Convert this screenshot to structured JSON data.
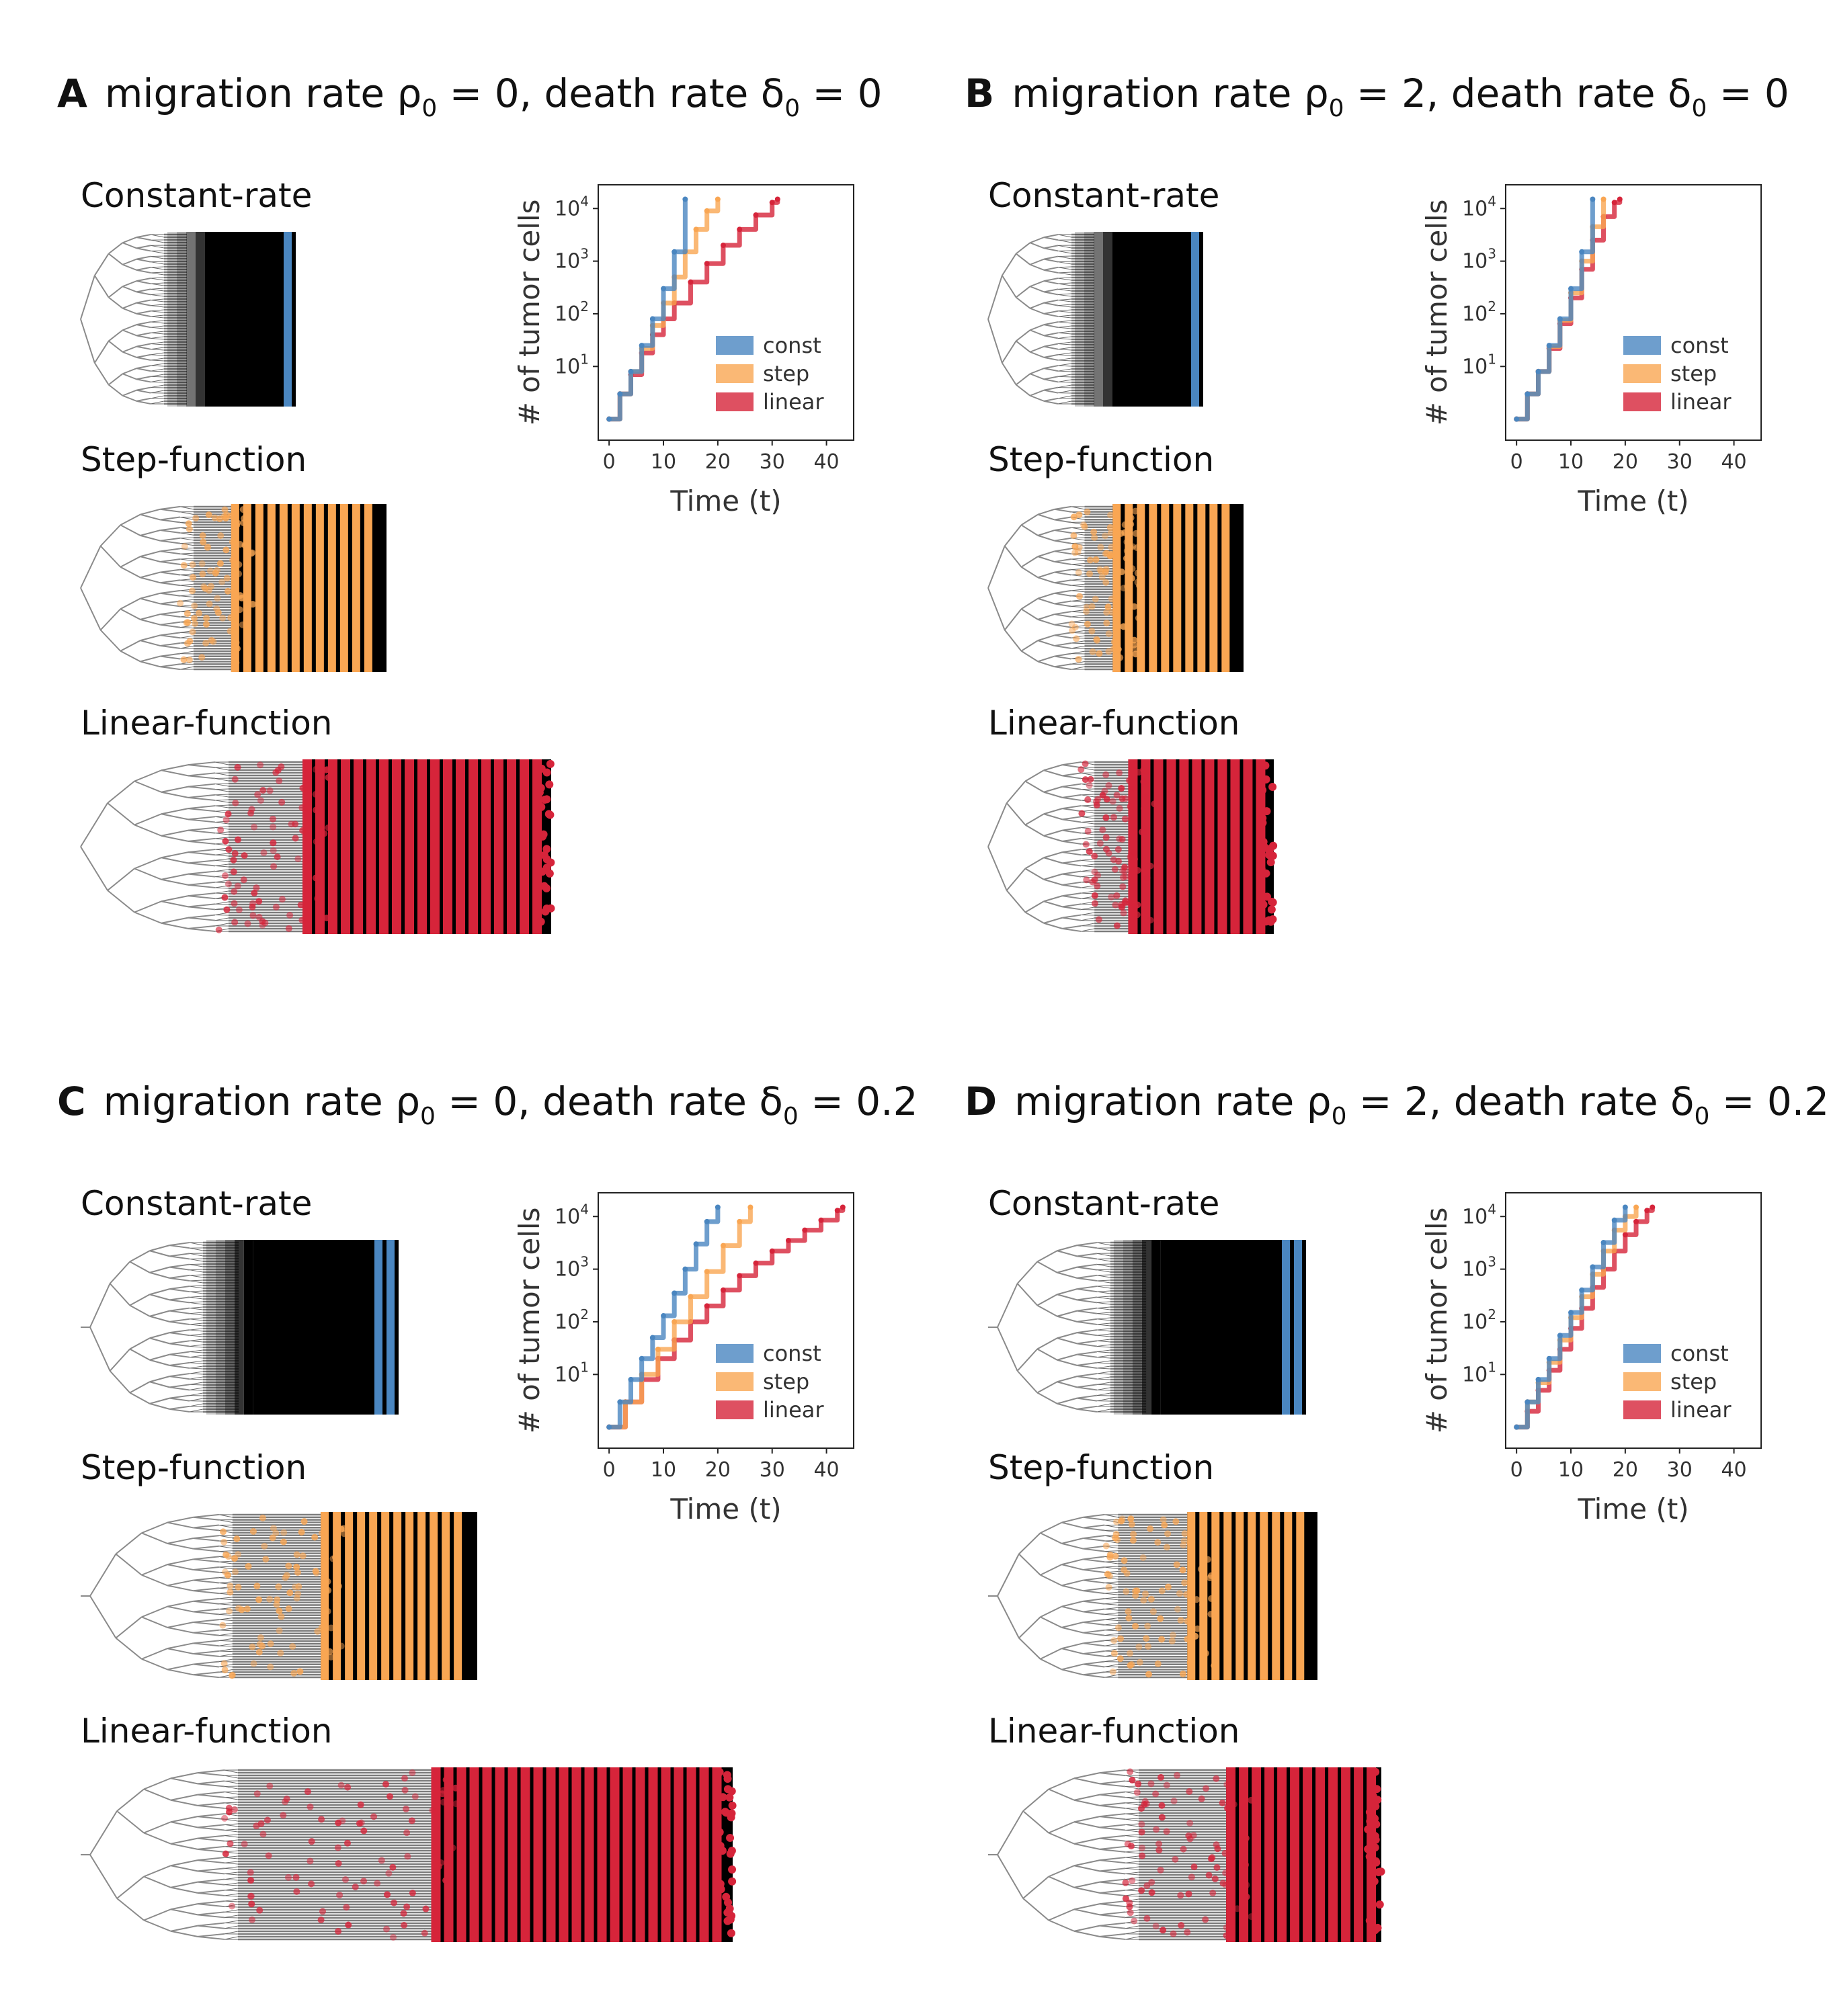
{
  "colors": {
    "const": "#4a86c0",
    "step": "#f9a653",
    "linear": "#d6243a",
    "tree_stem": "#8a8a8a"
  },
  "panels": [
    {
      "letter": "A",
      "rho_value": "0",
      "delta_value": "0",
      "title": {
        "prefix": "migration rate ",
        "rho_symbol": "ρ",
        "rho_sub": "0",
        "mid": " = 0, death rate ",
        "delta_symbol": "δ",
        "delta_sub": "0",
        "suffix": " = 0"
      },
      "tree_labels": [
        "Constant-rate",
        "Step-function",
        "Linear-function"
      ]
    },
    {
      "letter": "B",
      "rho_value": "2",
      "delta_value": "0",
      "title": {
        "prefix": "migration rate ",
        "rho_symbol": "ρ",
        "rho_sub": "0",
        "mid": " = 2, death rate ",
        "delta_symbol": "δ",
        "delta_sub": "0",
        "suffix": " = 0"
      },
      "tree_labels": [
        "Constant-rate",
        "Step-function",
        "Linear-function"
      ]
    },
    {
      "letter": "C",
      "rho_value": "0",
      "delta_value": "0.2",
      "title": {
        "prefix": "migration rate ",
        "rho_symbol": "ρ",
        "rho_sub": "0",
        "mid": " = 0, death rate ",
        "delta_symbol": "δ",
        "delta_sub": "0",
        "suffix": " = 0.2"
      },
      "tree_labels": [
        "Constant-rate",
        "Step-function",
        "Linear-function"
      ]
    },
    {
      "letter": "D",
      "rho_value": "2",
      "delta_value": "0.2",
      "title": {
        "prefix": "migration rate ",
        "rho_symbol": "ρ",
        "rho_sub": "0",
        "mid": " = 2, death rate ",
        "delta_symbol": "δ",
        "delta_sub": "0",
        "suffix": " = 0.2"
      },
      "tree_labels": [
        "Constant-rate",
        "Step-function",
        "Linear-function"
      ]
    }
  ],
  "chart_data": [
    {
      "panel": "A",
      "type": "line",
      "xlabel": "Time (t)",
      "ylabel": "# of tumor cells",
      "x_ticks": [
        0,
        10,
        20,
        30,
        40
      ],
      "y_ticks": [
        "10^1",
        "10^2",
        "10^3",
        "10^4"
      ],
      "xlim": [
        -2,
        45
      ],
      "ylim_log10": [
        -0.4,
        4.45
      ],
      "y_scale": "log",
      "legend": [
        "const",
        "step",
        "linear"
      ],
      "legend_position": "bottom-right",
      "series": [
        {
          "name": "const",
          "x": [
            0,
            2,
            4,
            6,
            8,
            10,
            12,
            14
          ],
          "y": [
            1,
            3,
            8,
            25,
            80,
            300,
            1500,
            15000
          ]
        },
        {
          "name": "step",
          "x": [
            0,
            2,
            4,
            6,
            8,
            10,
            12,
            14,
            16,
            18,
            20
          ],
          "y": [
            1,
            3,
            8,
            22,
            60,
            160,
            500,
            1500,
            4000,
            9000,
            15000
          ]
        },
        {
          "name": "linear",
          "x": [
            0,
            2,
            4,
            6,
            8,
            10,
            12,
            15,
            18,
            21,
            24,
            27,
            30,
            31
          ],
          "y": [
            1,
            3,
            7,
            18,
            40,
            80,
            160,
            400,
            900,
            2000,
            4000,
            7500,
            13000,
            15000
          ]
        }
      ]
    },
    {
      "panel": "B",
      "type": "line",
      "xlabel": "Time (t)",
      "ylabel": "# of tumor cells",
      "x_ticks": [
        0,
        10,
        20,
        30,
        40
      ],
      "y_ticks": [
        "10^1",
        "10^2",
        "10^3",
        "10^4"
      ],
      "xlim": [
        -2,
        45
      ],
      "ylim_log10": [
        -0.4,
        4.45
      ],
      "y_scale": "log",
      "legend": [
        "const",
        "step",
        "linear"
      ],
      "legend_position": "bottom-right",
      "series": [
        {
          "name": "const",
          "x": [
            0,
            2,
            4,
            6,
            8,
            10,
            12,
            14
          ],
          "y": [
            1,
            3,
            8,
            25,
            80,
            300,
            1500,
            15000
          ]
        },
        {
          "name": "step",
          "x": [
            0,
            2,
            4,
            6,
            8,
            10,
            12,
            14,
            16
          ],
          "y": [
            1,
            3,
            8,
            24,
            75,
            250,
            1000,
            4500,
            15000
          ]
        },
        {
          "name": "linear",
          "x": [
            0,
            2,
            4,
            6,
            8,
            10,
            12,
            14,
            16,
            18,
            19
          ],
          "y": [
            1,
            3,
            8,
            22,
            65,
            200,
            700,
            2500,
            7000,
            13000,
            15000
          ]
        }
      ]
    },
    {
      "panel": "C",
      "type": "line",
      "xlabel": "Time (t)",
      "ylabel": "# of tumor cells",
      "x_ticks": [
        0,
        10,
        20,
        30,
        40
      ],
      "y_ticks": [
        "10^1",
        "10^2",
        "10^3",
        "10^4"
      ],
      "xlim": [
        -2,
        45
      ],
      "ylim_log10": [
        -0.4,
        4.45
      ],
      "y_scale": "log",
      "legend": [
        "const",
        "step",
        "linear"
      ],
      "legend_position": "bottom-right",
      "series": [
        {
          "name": "const",
          "x": [
            0,
            2,
            4,
            6,
            8,
            10,
            12,
            14,
            16,
            18,
            20
          ],
          "y": [
            1,
            3,
            8,
            20,
            50,
            130,
            350,
            1000,
            3000,
            8000,
            15000
          ]
        },
        {
          "name": "step",
          "x": [
            0,
            3,
            6,
            9,
            12,
            15,
            18,
            21,
            24,
            26
          ],
          "y": [
            1,
            3,
            10,
            30,
            100,
            300,
            900,
            2800,
            8000,
            15000
          ]
        },
        {
          "name": "linear",
          "x": [
            0,
            3,
            6,
            9,
            12,
            15,
            18,
            21,
            24,
            27,
            30,
            33,
            36,
            39,
            42,
            43
          ],
          "y": [
            1,
            3,
            8,
            20,
            45,
            100,
            200,
            400,
            750,
            1300,
            2200,
            3500,
            5500,
            8500,
            13000,
            15000
          ]
        }
      ]
    },
    {
      "panel": "D",
      "type": "line",
      "xlabel": "Time (t)",
      "ylabel": "# of tumor cells",
      "x_ticks": [
        0,
        10,
        20,
        30,
        40
      ],
      "y_ticks": [
        "10^1",
        "10^2",
        "10^3",
        "10^4"
      ],
      "xlim": [
        -2,
        45
      ],
      "ylim_log10": [
        -0.4,
        4.45
      ],
      "y_scale": "log",
      "legend": [
        "const",
        "step",
        "linear"
      ],
      "legend_position": "bottom-right",
      "series": [
        {
          "name": "const",
          "x": [
            0,
            2,
            4,
            6,
            8,
            10,
            12,
            14,
            16,
            18,
            20
          ],
          "y": [
            1,
            3,
            8,
            20,
            55,
            150,
            400,
            1100,
            3200,
            8500,
            15000
          ]
        },
        {
          "name": "step",
          "x": [
            0,
            2,
            4,
            6,
            8,
            10,
            12,
            14,
            16,
            18,
            20,
            22
          ],
          "y": [
            1,
            3,
            7,
            17,
            45,
            120,
            300,
            800,
            2200,
            5500,
            10000,
            15000
          ]
        },
        {
          "name": "linear",
          "x": [
            0,
            2,
            4,
            6,
            8,
            10,
            12,
            14,
            16,
            18,
            20,
            22,
            24,
            25
          ],
          "y": [
            1,
            2,
            5,
            12,
            30,
            75,
            180,
            450,
            1000,
            2200,
            4500,
            8000,
            13000,
            15000
          ]
        }
      ]
    }
  ]
}
